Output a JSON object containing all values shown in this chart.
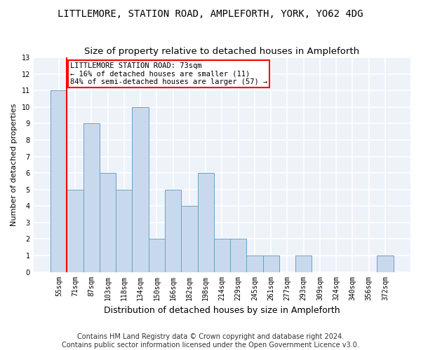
{
  "title": "LITTLEMORE, STATION ROAD, AMPLEFORTH, YORK, YO62 4DG",
  "subtitle": "Size of property relative to detached houses in Ampleforth",
  "xlabel": "Distribution of detached houses by size in Ampleforth",
  "ylabel": "Number of detached properties",
  "categories": [
    "55sqm",
    "71sqm",
    "87sqm",
    "103sqm",
    "118sqm",
    "134sqm",
    "150sqm",
    "166sqm",
    "182sqm",
    "198sqm",
    "214sqm",
    "229sqm",
    "245sqm",
    "261sqm",
    "277sqm",
    "293sqm",
    "309sqm",
    "324sqm",
    "340sqm",
    "356sqm",
    "372sqm"
  ],
  "values": [
    11,
    5,
    9,
    6,
    5,
    10,
    2,
    5,
    4,
    6,
    2,
    2,
    1,
    1,
    0,
    1,
    0,
    0,
    0,
    0,
    1
  ],
  "bar_color": "#c9d9ed",
  "bar_edge_color": "#6a9fc8",
  "highlight_line_color": "red",
  "highlight_line_index": 0.5,
  "annotation_text": "LITTLEMORE STATION ROAD: 73sqm\n← 16% of detached houses are smaller (11)\n84% of semi-detached houses are larger (57) →",
  "annotation_box_facecolor": "white",
  "annotation_box_edgecolor": "red",
  "ylim": [
    0,
    13
  ],
  "yticks": [
    0,
    1,
    2,
    3,
    4,
    5,
    6,
    7,
    8,
    9,
    10,
    11,
    12,
    13
  ],
  "footer_line1": "Contains HM Land Registry data © Crown copyright and database right 2024.",
  "footer_line2": "Contains public sector information licensed under the Open Government Licence v3.0.",
  "background_color": "#eef2f9",
  "grid_color": "white",
  "title_fontsize": 10,
  "subtitle_fontsize": 9.5,
  "xlabel_fontsize": 9,
  "ylabel_fontsize": 8,
  "tick_fontsize": 7,
  "footer_fontsize": 7,
  "annotation_fontsize": 7.5
}
